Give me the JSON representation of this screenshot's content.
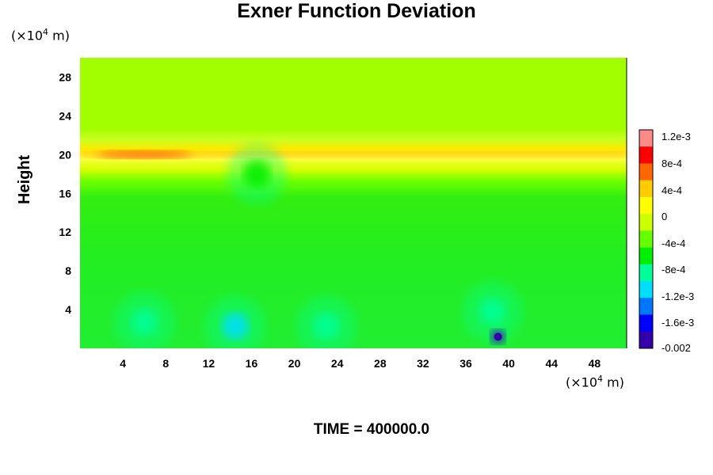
{
  "chart_data": {
    "type": "heatmap",
    "title": "Exner Function Deviation",
    "ylabel": "Height",
    "x_unit": "(×10⁴ m)",
    "y_unit": "(×10⁴ m)",
    "footer": "TIME = 400000.0",
    "xlim": [
      0,
      51
    ],
    "ylim": [
      0,
      30
    ],
    "x_ticks": [
      "4",
      "8",
      "12",
      "16",
      "20",
      "24",
      "28",
      "32",
      "36",
      "40",
      "44",
      "48"
    ],
    "y_ticks": [
      "4",
      "8",
      "12",
      "16",
      "20",
      "24",
      "28"
    ],
    "colorbar_ticks": [
      "1.2e-3",
      "8e-4",
      "4e-4",
      "0",
      "-4e-4",
      "-8e-4",
      "-1.2e-3",
      "-1.6e-3",
      "-0.002"
    ],
    "colorbar_range": [
      -0.002,
      0.0014
    ],
    "colormap": [
      "#3300aa",
      "#0000ff",
      "#0077ff",
      "#00ddff",
      "#00ff99",
      "#00ee00",
      "#66ff00",
      "#ccff00",
      "#ffff00",
      "#ffcc00",
      "#ff6600",
      "#ff0000",
      "#ff8888"
    ],
    "background_value": -0.0004,
    "upper_value": 0.0001,
    "layers": [
      {
        "y": 20.0,
        "value": 0.0007
      },
      {
        "y": 18.5,
        "value": 0.0003
      },
      {
        "y": 17.0,
        "value": -0.0002
      }
    ],
    "features": [
      {
        "x": 6,
        "y": 2.7,
        "value": -0.0009
      },
      {
        "x": 14.5,
        "y": 2.3,
        "value": -0.001
      },
      {
        "x": 23,
        "y": 2.3,
        "value": -0.0009
      },
      {
        "x": 38.5,
        "y": 3.8,
        "value": -0.0009
      },
      {
        "x": 39,
        "y": 1.2,
        "value": -0.0018
      },
      {
        "x": 6,
        "y": 20.0,
        "value": 0.0011
      },
      {
        "x": 16.5,
        "y": 18.0,
        "value": -0.0006
      }
    ]
  }
}
